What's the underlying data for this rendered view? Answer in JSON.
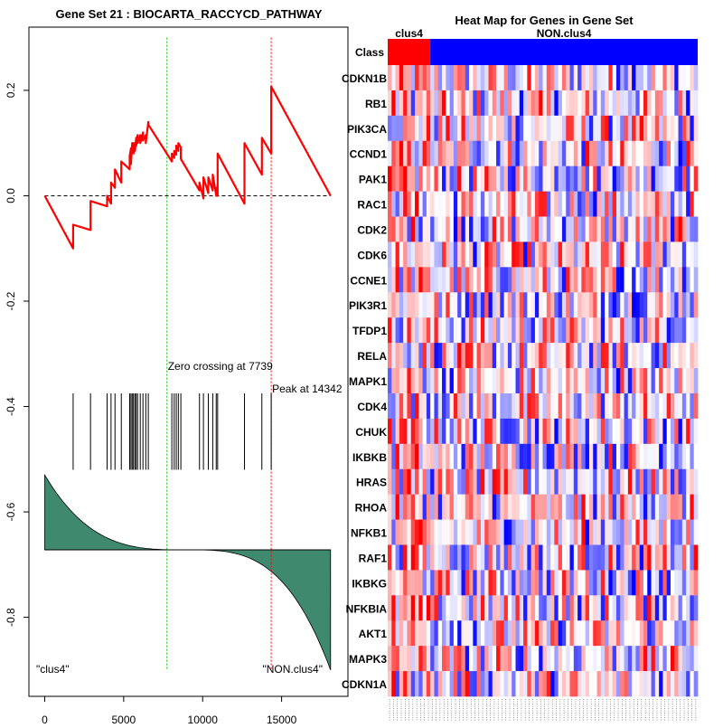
{
  "chart_data": [
    {
      "type": "line",
      "title": "Gene Set  21 : BIOCARTA_RACCYCD_PATHWAY",
      "xlim": [
        -1000,
        19200
      ],
      "ylim": [
        -0.95,
        0.32
      ],
      "x_ticks": [
        0,
        5000,
        10000,
        15000
      ],
      "x_tick_labels": [
        "0",
        "5000",
        "10000",
        "15000"
      ],
      "y_ticks": [
        0.2,
        0.0,
        -0.2,
        -0.4,
        -0.6,
        -0.8
      ],
      "y_tick_labels": [
        "0.2",
        "0.0",
        "-0.2",
        "-0.4",
        "-0.6",
        "-0.8"
      ],
      "colors": {
        "running_es": "#ff0000",
        "zero_line": "#000000",
        "zero_cross": "#00cc00",
        "peak": "#ff0000",
        "ranked_fill": "#3f8a6f"
      },
      "series": [
        {
          "values_desc": "running enrichment score",
          "x": [
            0,
            1800,
            1800,
            2900,
            2900,
            3950,
            3950,
            4200,
            4200,
            4450,
            4450,
            4850,
            4850,
            5380,
            5380,
            5460,
            5460,
            5540,
            5540,
            5620,
            5620,
            5710,
            5710,
            5790,
            5790,
            5880,
            5880,
            6050,
            6050,
            6220,
            6220,
            6400,
            6400,
            6560,
            6560,
            8050,
            8050,
            8200,
            8200,
            8330,
            8330,
            8460,
            8460,
            8620,
            8620,
            9800,
            9800,
            10050,
            10050,
            10360,
            10360,
            10640,
            10640,
            10860,
            10860,
            10950,
            10950,
            12650,
            12650,
            13750,
            13750,
            14342,
            14342,
            18100
          ],
          "y": [
            0.0,
            -0.1,
            -0.055,
            -0.065,
            -0.01,
            -0.02,
            0.0,
            -0.015,
            0.025,
            0.015,
            0.05,
            0.025,
            0.065,
            0.05,
            0.075,
            0.09,
            0.06,
            0.1,
            0.085,
            0.1,
            0.08,
            0.1,
            0.085,
            0.11,
            0.095,
            0.115,
            0.1,
            0.115,
            0.1,
            0.12,
            0.105,
            0.115,
            0.1,
            0.14,
            0.135,
            0.065,
            0.08,
            0.072,
            0.085,
            0.078,
            0.095,
            0.085,
            0.1,
            0.092,
            0.07,
            0.01,
            0.025,
            -0.005,
            0.035,
            0.005,
            0.035,
            0.01,
            0.04,
            0.0,
            0.015,
            0.0,
            0.08,
            -0.015,
            0.1,
            0.04,
            0.11,
            0.08,
            0.207,
            0.0
          ]
        }
      ],
      "zero_crossing": 7739,
      "peak": 14342,
      "zero_crossing_label": "Zero crossing at 7739",
      "peak_label": "Peak at 14342",
      "hits": [
        1800,
        2900,
        3950,
        4200,
        4450,
        4850,
        5380,
        5460,
        5540,
        5620,
        5710,
        5790,
        5880,
        6050,
        6220,
        6400,
        6560,
        8050,
        8200,
        8330,
        8460,
        8620,
        9800,
        10050,
        10360,
        10640,
        10860,
        10950,
        12650,
        13750,
        14342
      ],
      "hit_band": [
        -0.52,
        -0.375
      ],
      "ranked_metric": {
        "baseline": -0.672,
        "n": 18100,
        "start": -0.53,
        "end": -0.9
      },
      "class_labels": [
        "\"clus4\"",
        "\"NON.clus4\""
      ]
    },
    {
      "type": "heatmap",
      "title": "Heat Map for Genes in Gene Set",
      "class_row_label": "Class",
      "groups": [
        {
          "name": "clus4",
          "color": "#ff0000",
          "count": 11
        },
        {
          "name": "NON.clus4",
          "color": "#0000ff",
          "count": 69
        }
      ],
      "genes": [
        "CDKN1B",
        "RB1",
        "PIK3CA",
        "CCND1",
        "PAK1",
        "RAC1",
        "CDK2",
        "CDK6",
        "CCNE1",
        "PIK3R1",
        "TFDP1",
        "RELA",
        "MAPK1",
        "CDK4",
        "CHUK",
        "IKBKB",
        "HRAS",
        "RHOA",
        "NFKB1",
        "RAF1",
        "IKBKG",
        "NFKBIA",
        "AKT1",
        "MAPK3",
        "CDKN1A"
      ],
      "colors": {
        "high": "#ff0000",
        "mid": "#ffffff",
        "low": "#0000ff"
      }
    }
  ]
}
